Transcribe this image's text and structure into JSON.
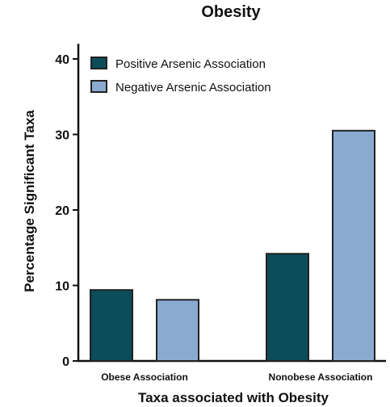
{
  "chart_data": {
    "type": "bar",
    "title": "Obesity",
    "xlabel": "Taxa associated with Obesity",
    "ylabel": "Percentage Significant Taxa",
    "categories": [
      "Obese Association",
      "Nonobese Association"
    ],
    "series": [
      {
        "name": "Positive Arsenic Association",
        "values": [
          9.4,
          14.2
        ],
        "color": "#0b4d5a"
      },
      {
        "name": "Negative Arsenic Association",
        "values": [
          8.1,
          30.5
        ],
        "color": "#8aaad2"
      }
    ],
    "yticks": [
      0,
      10,
      20,
      30,
      40
    ],
    "ylim": [
      0,
      42
    ],
    "grid": false,
    "legend": "top-left"
  }
}
